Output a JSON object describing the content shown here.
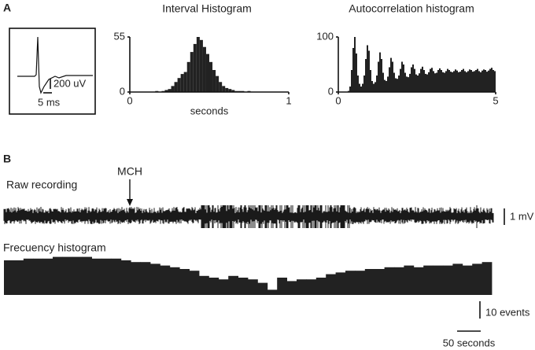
{
  "panels": {
    "a": "A",
    "b": "B"
  },
  "chart_data": [
    {
      "type": "waveform",
      "y_scale_label": "200 uV",
      "x_scale_label": "5 ms"
    },
    {
      "type": "histogram",
      "title": "Interval Histogram",
      "xlabel": "seconds",
      "color": "#222",
      "bins": [
        0,
        0.02,
        0.04,
        0.06,
        0.08,
        0.1,
        0.12,
        0.14,
        0.16,
        0.18,
        0.2,
        0.22,
        0.24,
        0.26,
        0.28,
        0.3,
        0.32,
        0.34,
        0.36,
        0.38,
        0.4,
        0.42,
        0.44,
        0.46,
        0.48,
        0.5,
        0.52,
        0.54,
        0.56,
        0.58,
        0.6,
        0.62,
        0.64,
        0.66,
        0.68,
        0.7,
        0.72,
        0.74,
        0.76,
        0.78,
        0.8,
        0.82,
        0.84,
        0.86,
        0.88,
        0.9,
        0.92,
        0.94,
        0.96,
        0.98,
        1
      ],
      "values": [
        0,
        0,
        0,
        0,
        0,
        0,
        0,
        0,
        1,
        0,
        1,
        2,
        3,
        6,
        10,
        14,
        18,
        20,
        30,
        40,
        48,
        55,
        52,
        45,
        38,
        30,
        22,
        16,
        10,
        6,
        4,
        3,
        2,
        1,
        1,
        1,
        0,
        1,
        0,
        0,
        0,
        0,
        0,
        0,
        0,
        0,
        0,
        0,
        0,
        0
      ],
      "xlim": [
        0,
        1
      ],
      "xticks": [
        0,
        1
      ],
      "ylim": [
        0,
        55
      ],
      "yticks": [
        0,
        55
      ]
    },
    {
      "type": "histogram",
      "title": "Autocorrelation histogram",
      "color": "#222",
      "bins": [
        0,
        0.05,
        0.1,
        0.15,
        0.2,
        0.25,
        0.3,
        0.35,
        0.4,
        0.45,
        0.5,
        0.55,
        0.6,
        0.65,
        0.7,
        0.75,
        0.8,
        0.85,
        0.9,
        0.95,
        1,
        1.05,
        1.1,
        1.15,
        1.2,
        1.25,
        1.3,
        1.35,
        1.4,
        1.45,
        1.5,
        1.55,
        1.6,
        1.65,
        1.7,
        1.75,
        1.8,
        1.85,
        1.9,
        1.95,
        2,
        2.05,
        2.1,
        2.15,
        2.2,
        2.25,
        2.3,
        2.35,
        2.4,
        2.45,
        2.5,
        2.55,
        2.6,
        2.65,
        2.7,
        2.75,
        2.8,
        2.85,
        2.9,
        2.95,
        3,
        3.05,
        3.1,
        3.15,
        3.2,
        3.25,
        3.3,
        3.35,
        3.4,
        3.45,
        3.5,
        3.55,
        3.6,
        3.65,
        3.7,
        3.75,
        3.8,
        3.85,
        3.9,
        3.95,
        4,
        4.05,
        4.1,
        4.15,
        4.2,
        4.25,
        4.3,
        4.35,
        4.4,
        4.45,
        4.5,
        4.55,
        4.6,
        4.65,
        4.7,
        4.75,
        4.8,
        4.85,
        4.9,
        4.95,
        5
      ],
      "values": [
        0,
        0,
        0,
        0,
        0,
        0,
        2,
        10,
        40,
        80,
        100,
        70,
        30,
        15,
        10,
        15,
        30,
        60,
        85,
        75,
        40,
        20,
        15,
        18,
        30,
        55,
        72,
        60,
        35,
        22,
        20,
        28,
        45,
        62,
        55,
        35,
        25,
        24,
        30,
        42,
        55,
        50,
        35,
        28,
        27,
        33,
        45,
        50,
        42,
        32,
        30,
        34,
        42,
        46,
        40,
        33,
        32,
        36,
        42,
        44,
        38,
        34,
        35,
        40,
        43,
        40,
        36,
        35,
        38,
        42,
        40,
        37,
        36,
        38,
        41,
        39,
        36,
        37,
        40,
        42,
        38,
        36,
        38,
        41,
        40,
        37,
        38,
        40,
        42,
        38,
        36,
        39,
        41,
        40,
        37,
        39,
        42,
        44,
        40,
        38
      ],
      "xlim": [
        0,
        5
      ],
      "xticks": [
        0,
        5
      ],
      "ylim": [
        0,
        100
      ],
      "yticks": [
        0,
        100
      ]
    },
    {
      "type": "trace",
      "title": "Raw recording",
      "annotation": "MCH",
      "scale_label": "1 mV"
    },
    {
      "type": "step",
      "title": "Frecuency histogram",
      "color": "#222",
      "values": [
        20,
        20,
        21,
        21,
        21,
        22,
        22,
        22,
        22,
        21,
        21,
        21,
        20,
        19,
        19,
        18,
        17,
        16,
        15,
        14,
        11,
        10,
        9,
        11,
        10,
        9,
        7,
        3,
        10,
        8,
        9,
        9,
        10,
        12,
        13,
        14,
        14,
        15,
        15,
        16,
        16,
        17,
        16,
        17,
        17,
        17,
        18,
        17,
        18,
        19
      ],
      "yscale": {
        "value": 10,
        "label": "10 events"
      },
      "xscale": {
        "value": 50,
        "label": "50 seconds"
      }
    }
  ]
}
